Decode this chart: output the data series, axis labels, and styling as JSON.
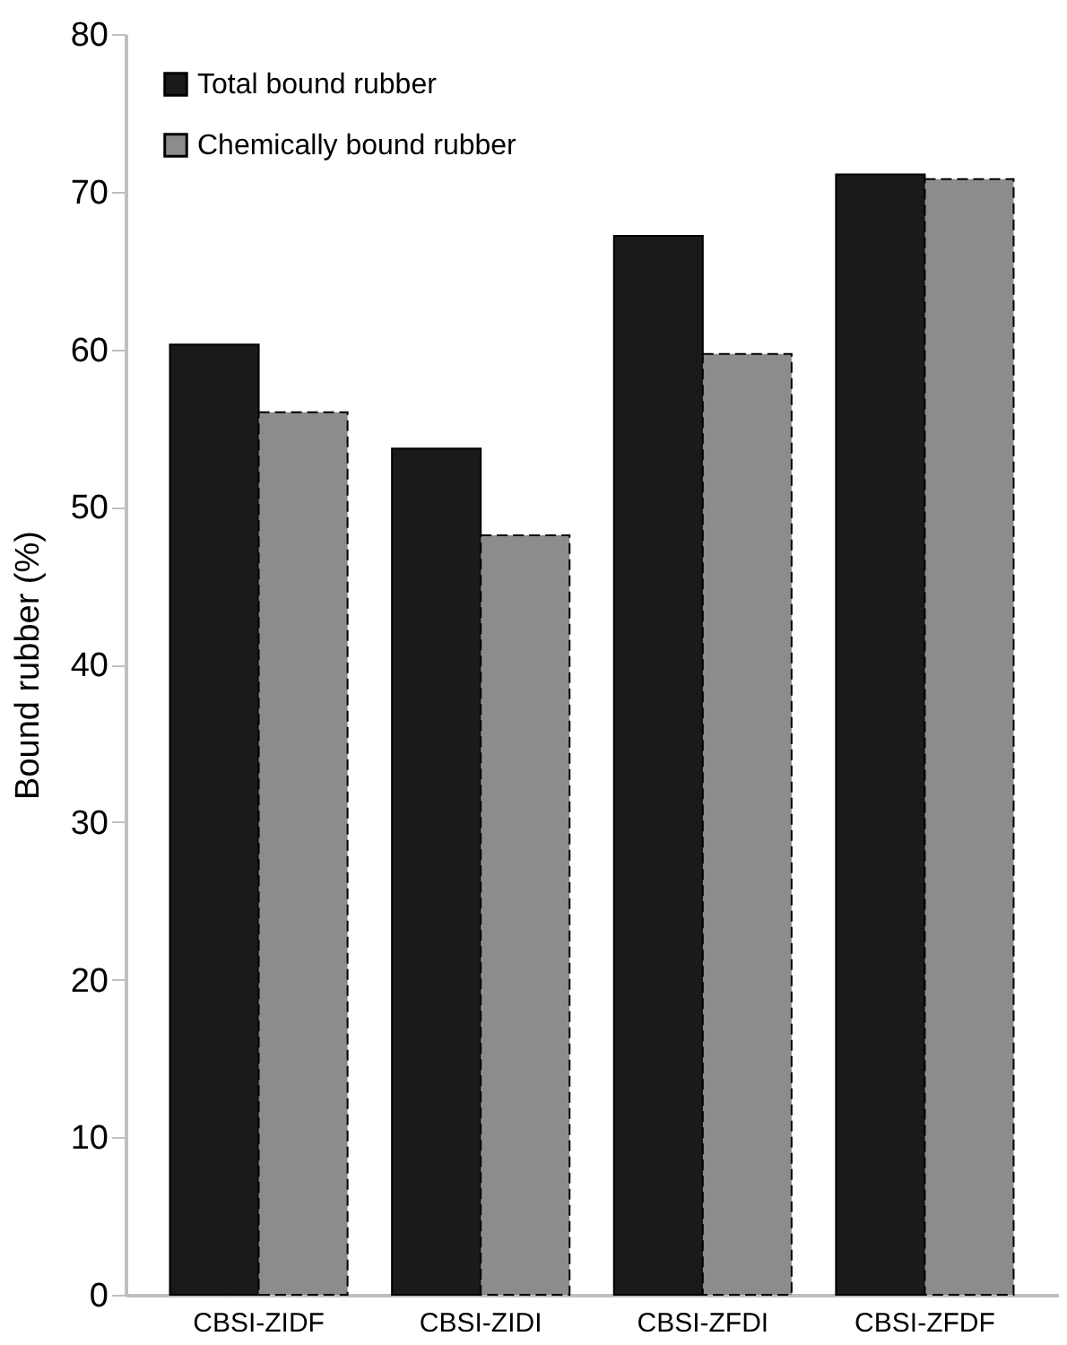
{
  "chart_data": {
    "type": "bar",
    "ylabel": "Bound rubber (%)",
    "categories": [
      "CBSI-ZIDF",
      "CBSI-ZIDI",
      "CBSI-ZFDI",
      "CBSI-ZFDF"
    ],
    "series": [
      {
        "name": "Total bound rubber",
        "color": "#1a1a1a",
        "values": [
          60.3,
          53.7,
          67.2,
          71.1
        ]
      },
      {
        "name": "Chemically bound rubber",
        "color": "#8c8c8c",
        "line_style": "dashed",
        "values": [
          56.0,
          48.2,
          59.7,
          70.8
        ]
      }
    ],
    "ylim": [
      0,
      80
    ],
    "yticks": [
      0,
      10,
      20,
      30,
      40,
      50,
      60,
      70,
      80
    ],
    "grid": false,
    "legend": "top left"
  }
}
